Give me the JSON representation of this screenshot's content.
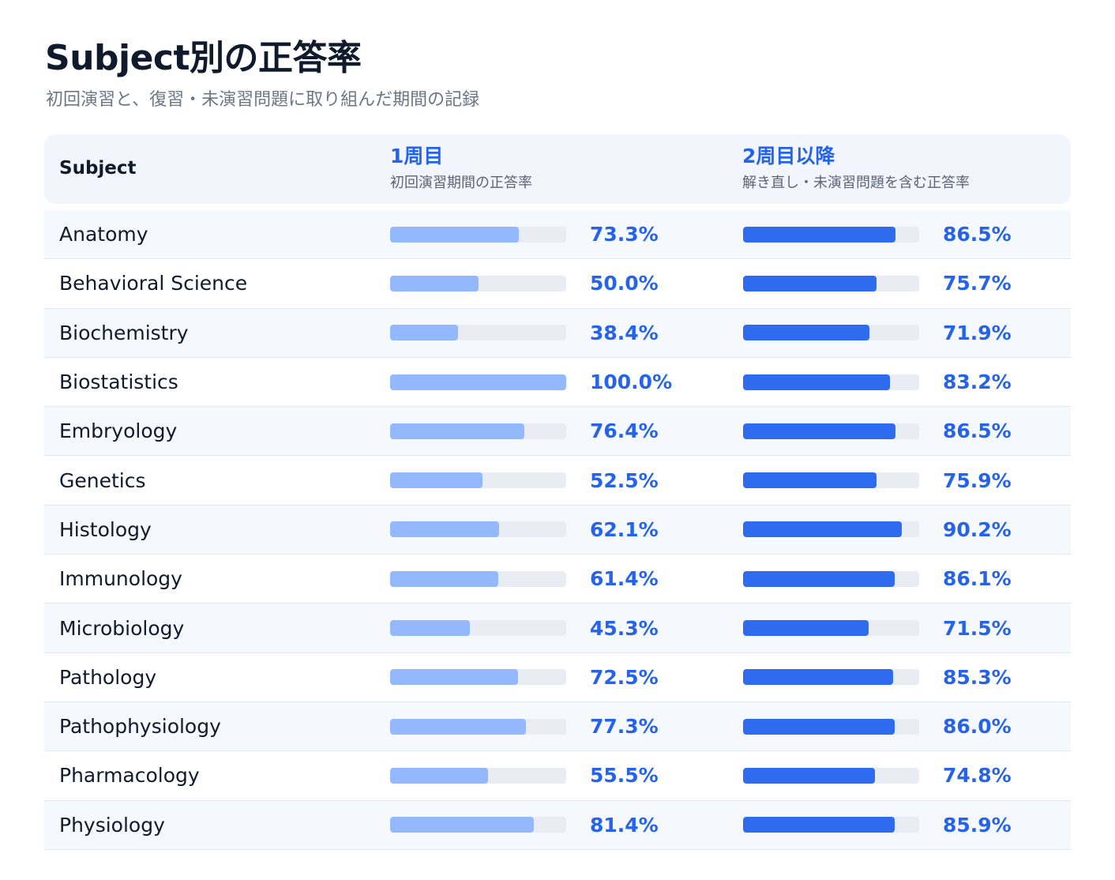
{
  "title": "Subject別の正答率",
  "subtitle": "初回演習と、復習・未演習問題に取り組んだ期間の記録",
  "header": {
    "subject": "Subject",
    "col1_title": "1周目",
    "col1_sub": "初回演習期間の正答率",
    "col2_title": "2周目以降",
    "col2_sub": "解き直し・未演習問題を含む正答率"
  },
  "colors": {
    "accent": "#2563eb",
    "bar_first": "#93b8fb",
    "bar_second": "#2f6bef",
    "track": "#e9edf3"
  },
  "chart_data": {
    "type": "bar",
    "title": "Subject別の正答率",
    "subtitle": "初回演習と、復習・未演習問題に取り組んだ期間の記録",
    "categories": [
      "Anatomy",
      "Behavioral Science",
      "Biochemistry",
      "Biostatistics",
      "Embryology",
      "Genetics",
      "Histology",
      "Immunology",
      "Microbiology",
      "Pathology",
      "Pathophysiology",
      "Pharmacology",
      "Physiology"
    ],
    "series": [
      {
        "name": "1周目",
        "values": [
          73.3,
          50.0,
          38.4,
          100.0,
          76.4,
          52.5,
          62.1,
          61.4,
          45.3,
          72.5,
          77.3,
          55.5,
          81.4
        ],
        "labels": [
          "73.3%",
          "50.0%",
          "38.4%",
          "100.0%",
          "76.4%",
          "52.5%",
          "62.1%",
          "61.4%",
          "45.3%",
          "72.5%",
          "77.3%",
          "55.5%",
          "81.4%"
        ]
      },
      {
        "name": "2周目以降",
        "values": [
          86.5,
          75.7,
          71.9,
          83.2,
          86.5,
          75.9,
          90.2,
          86.1,
          71.5,
          85.3,
          86.0,
          74.8,
          85.9
        ],
        "labels": [
          "86.5%",
          "75.7%",
          "71.9%",
          "83.2%",
          "86.5%",
          "75.9%",
          "90.2%",
          "86.1%",
          "71.5%",
          "85.3%",
          "86.0%",
          "74.8%",
          "85.9%"
        ]
      }
    ],
    "ylim": [
      0,
      100
    ],
    "orientation": "horizontal"
  }
}
